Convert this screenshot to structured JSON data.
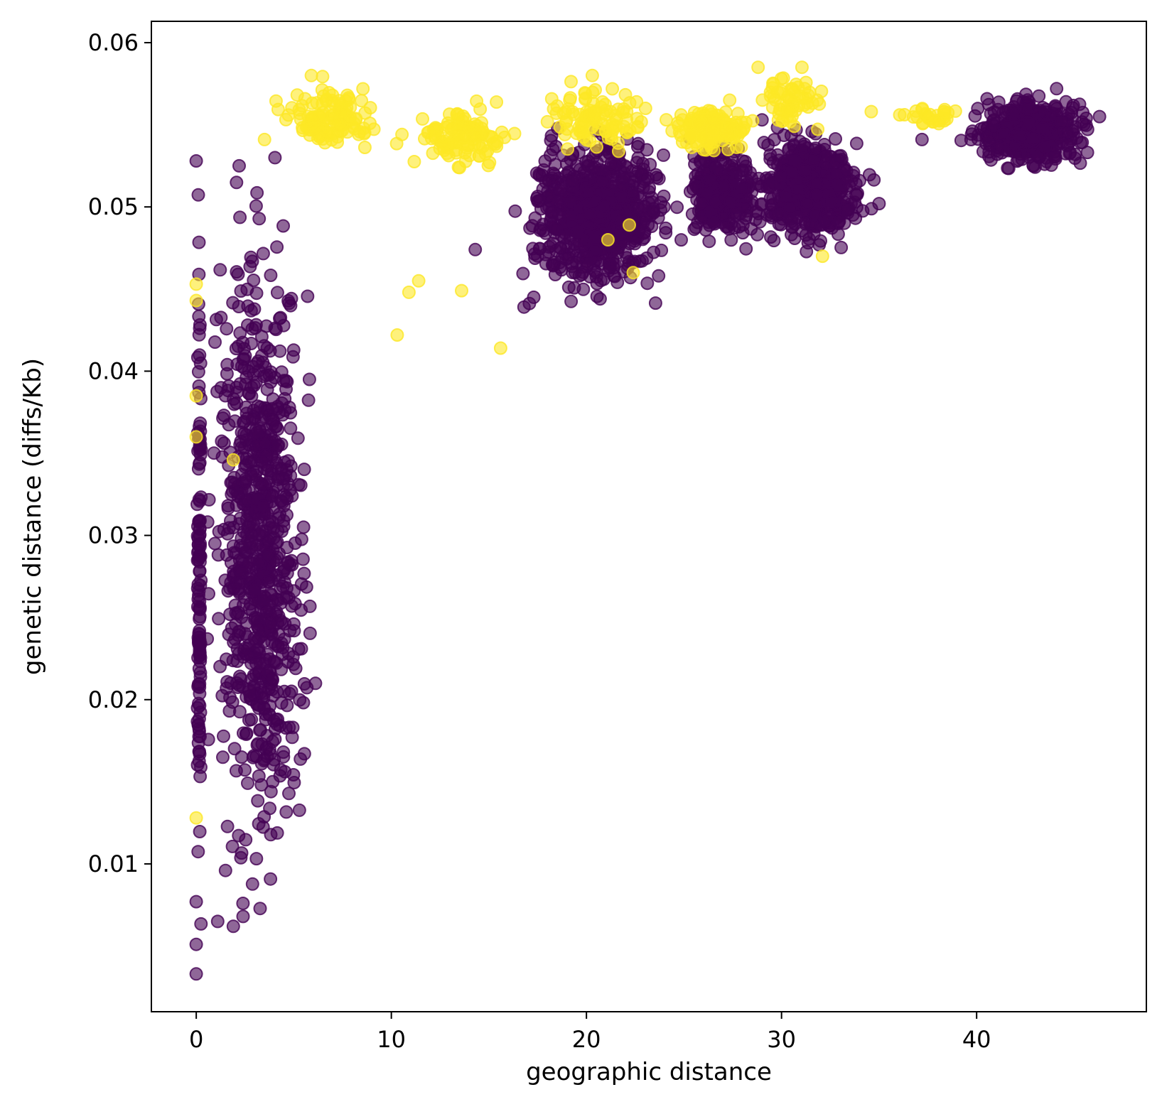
{
  "chart_data": {
    "type": "scatter",
    "xlabel": "geographic distance",
    "ylabel": "genetic distance (diffs/Kb)",
    "xlim": [
      -2.3,
      48.7
    ],
    "ylim": [
      0.001,
      0.0613
    ],
    "xticks": [
      0,
      10,
      20,
      30,
      40
    ],
    "yticks": [
      0.01,
      0.02,
      0.03,
      0.04,
      0.05,
      0.06
    ],
    "xtick_labels": [
      "0",
      "10",
      "20",
      "30",
      "40"
    ],
    "ytick_labels": [
      "0.01",
      "0.02",
      "0.03",
      "0.04",
      "0.05",
      "0.06"
    ],
    "grid": false,
    "legend": "none",
    "marker_alpha": 0.6,
    "colors": {
      "class_0": "#440154",
      "class_1": "#fde725"
    },
    "series": [
      {
        "color": "#440154",
        "clusters": [
          {
            "x": [
              0,
              0.3
            ],
            "y": [
              0.003,
              0.053
            ],
            "n": 130
          },
          {
            "x": [
              0.2,
              6.4
            ],
            "y": [
              0.006,
              0.053
            ],
            "n": 800
          },
          {
            "x": [
              16.2,
              25.0
            ],
            "y": [
              0.044,
              0.055
            ],
            "n": 800
          },
          {
            "x": [
              24.5,
              29.5
            ],
            "y": [
              0.047,
              0.055
            ],
            "n": 300
          },
          {
            "x": [
              28.0,
              35.0
            ],
            "y": [
              0.047,
              0.055
            ],
            "n": 550
          },
          {
            "x": [
              39.0,
              46.5
            ],
            "y": [
              0.052,
              0.057
            ],
            "n": 450
          }
        ],
        "points": [
          {
            "x": 0.0,
            "y": 0.0033
          },
          {
            "x": 0.0,
            "y": 0.0051
          },
          {
            "x": 0.0,
            "y": 0.0077
          },
          {
            "x": 0.0,
            "y": 0.0528
          },
          {
            "x": 1.1,
            "y": 0.0065
          },
          {
            "x": 1.9,
            "y": 0.0062
          },
          {
            "x": 2.4,
            "y": 0.0068
          },
          {
            "x": 1.5,
            "y": 0.0096
          },
          {
            "x": 2.2,
            "y": 0.0525
          },
          {
            "x": 5.8,
            "y": 0.0395
          },
          {
            "x": 5.5,
            "y": 0.0305
          },
          {
            "x": 5.0,
            "y": 0.0246
          },
          {
            "x": 5.1,
            "y": 0.0219
          },
          {
            "x": 14.3,
            "y": 0.0474
          },
          {
            "x": 16.8,
            "y": 0.0439
          },
          {
            "x": 17.3,
            "y": 0.0445
          },
          {
            "x": 20.7,
            "y": 0.0444
          },
          {
            "x": 23.7,
            "y": 0.0458
          },
          {
            "x": 29.0,
            "y": 0.0553
          },
          {
            "x": 37.2,
            "y": 0.0541
          },
          {
            "x": 44.1,
            "y": 0.0572
          },
          {
            "x": 46.3,
            "y": 0.0555
          },
          {
            "x": 35.0,
            "y": 0.0502
          }
        ]
      },
      {
        "color": "#fde725",
        "clusters": [
          {
            "x": [
              3.5,
              10.0
            ],
            "y": [
              0.053,
              0.058
            ],
            "n": 120
          },
          {
            "x": [
              10.0,
              17.0
            ],
            "y": [
              0.052,
              0.057
            ],
            "n": 110
          },
          {
            "x": [
              17.0,
              24.0
            ],
            "y": [
              0.053,
              0.058
            ],
            "n": 100
          },
          {
            "x": [
              24.0,
              29.0
            ],
            "y": [
              0.053,
              0.0565
            ],
            "n": 150
          },
          {
            "x": [
              28.5,
              32.5
            ],
            "y": [
              0.0545,
              0.0585
            ],
            "n": 60
          },
          {
            "x": [
              35.5,
              39.5
            ],
            "y": [
              0.0545,
              0.0565
            ],
            "n": 30
          }
        ],
        "points": [
          {
            "x": 0.0,
            "y": 0.0453
          },
          {
            "x": 0.0,
            "y": 0.0443
          },
          {
            "x": 0.0,
            "y": 0.0385
          },
          {
            "x": 0.0,
            "y": 0.036
          },
          {
            "x": 0.0,
            "y": 0.0128
          },
          {
            "x": 1.9,
            "y": 0.0346
          },
          {
            "x": 10.3,
            "y": 0.0422
          },
          {
            "x": 10.9,
            "y": 0.0448
          },
          {
            "x": 11.4,
            "y": 0.0455
          },
          {
            "x": 13.6,
            "y": 0.0449
          },
          {
            "x": 15.6,
            "y": 0.0414
          },
          {
            "x": 21.1,
            "y": 0.048
          },
          {
            "x": 22.2,
            "y": 0.0489
          },
          {
            "x": 22.4,
            "y": 0.046
          },
          {
            "x": 32.1,
            "y": 0.047
          },
          {
            "x": 20.3,
            "y": 0.058
          },
          {
            "x": 28.8,
            "y": 0.0585
          },
          {
            "x": 5.9,
            "y": 0.058
          },
          {
            "x": 34.6,
            "y": 0.0558
          },
          {
            "x": 3.5,
            "y": 0.0541
          }
        ]
      }
    ]
  }
}
